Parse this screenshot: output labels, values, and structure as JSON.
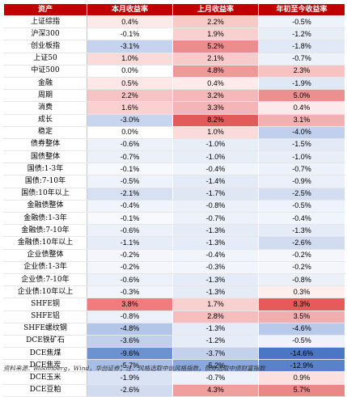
{
  "table": {
    "headers": [
      "资产",
      "本月收益率",
      "上月收益率",
      "年初至今收益率"
    ],
    "rows": [
      {
        "name": "上证综指",
        "values": [
          "0.4%",
          "2.2%",
          "-0.5%"
        ],
        "colors": [
          "#fde9e9",
          "#f8c9c9",
          "#eef2fa"
        ]
      },
      {
        "name": "沪深300",
        "values": [
          "-0.1%",
          "1.9%",
          "-1.2%"
        ],
        "colors": [
          "#ffffff",
          "#f9d0d0",
          "#e8eef8"
        ]
      },
      {
        "name": "创业板指",
        "values": [
          "-3.1%",
          "5.2%",
          "-1.8%"
        ],
        "colors": [
          "#c5d3ee",
          "#ec8d8d",
          "#e1e9f6"
        ]
      },
      {
        "name": "上证50",
        "values": [
          "1.0%",
          "2.1%",
          "-0.7%"
        ],
        "colors": [
          "#fbdada",
          "#f8cbcb",
          "#edf1fa"
        ]
      },
      {
        "name": "中证500",
        "values": [
          "0.0%",
          "4.8%",
          "2.3%"
        ],
        "colors": [
          "#ffffff",
          "#ee9898",
          "#f6c2c2"
        ]
      },
      {
        "name": "金融",
        "values": [
          "0.5%",
          "0.4%",
          "-1.9%"
        ],
        "colors": [
          "#fde7e7",
          "#fdeaea",
          "#e0e8f6"
        ]
      },
      {
        "name": "周期",
        "values": [
          "2.2%",
          "3.2%",
          "5.0%"
        ],
        "colors": [
          "#f6c4c4",
          "#f4b8b8",
          "#ec8f8f"
        ]
      },
      {
        "name": "消费",
        "values": [
          "1.6%",
          "3.3%",
          "0.4%"
        ],
        "colors": [
          "#f9d1d1",
          "#f3b5b5",
          "#fde9e9"
        ]
      },
      {
        "name": "成长",
        "values": [
          "-3.0%",
          "8.2%",
          "3.1%"
        ],
        "colors": [
          "#c7d5ee",
          "#e35a5a",
          "#f2b1b1"
        ]
      },
      {
        "name": "稳定",
        "values": [
          "0.0%",
          "1.0%",
          "-4.0%"
        ],
        "colors": [
          "#ffffff",
          "#fbdada",
          "#c0cfec"
        ]
      },
      {
        "name": "债券整体",
        "values": [
          "-0.6%",
          "-1.0%",
          "-1.5%"
        ],
        "colors": [
          "#edf1fa",
          "#e8eef8",
          "#e3eaf7"
        ]
      },
      {
        "name": "国债整体",
        "values": [
          "-0.7%",
          "-1.0%",
          "-1.0%"
        ],
        "colors": [
          "#ecf0f9",
          "#e8eef8",
          "#e8eef8"
        ]
      },
      {
        "name": "国债:1-3年",
        "values": [
          "-0.1%",
          "-0.4%",
          "-0.7%"
        ],
        "colors": [
          "#f7f9fd",
          "#f0f4fb",
          "#edf1fa"
        ]
      },
      {
        "name": "国债:7-10年",
        "values": [
          "-0.5%",
          "-1.4%",
          "-0.9%"
        ],
        "colors": [
          "#eef2fa",
          "#e4ebf7",
          "#eaeff9"
        ]
      },
      {
        "name": "国债:10年以上",
        "values": [
          "-2.1%",
          "-1.7%",
          "-2.5%"
        ],
        "colors": [
          "#d6e0f2",
          "#dfe7f5",
          "#d2ddf1"
        ]
      },
      {
        "name": "金融债整体",
        "values": [
          "-0.4%",
          "-0.8%",
          "-0.5%"
        ],
        "colors": [
          "#f0f4fb",
          "#ebf0f9",
          "#eef2fa"
        ]
      },
      {
        "name": "金融债:1-3年",
        "values": [
          "-0.1%",
          "-0.7%",
          "-0.4%"
        ],
        "colors": [
          "#f7f9fd",
          "#edf1fa",
          "#f0f4fb"
        ]
      },
      {
        "name": "金融债:7-10年",
        "values": [
          "-0.6%",
          "-1.3%",
          "-1.3%"
        ],
        "colors": [
          "#edf1fa",
          "#e5ecf7",
          "#e5ecf7"
        ]
      },
      {
        "name": "金融债:10年以上",
        "values": [
          "-1.1%",
          "-1.3%",
          "-2.6%"
        ],
        "colors": [
          "#e6edf8",
          "#e5ecf7",
          "#d1dcf1"
        ]
      },
      {
        "name": "企业债整体",
        "values": [
          "-0.2%",
          "-0.4%",
          "-0.2%"
        ],
        "colors": [
          "#f4f6fc",
          "#f0f4fb",
          "#f4f6fc"
        ]
      },
      {
        "name": "企业债:1-3年",
        "values": [
          "-0.2%",
          "-0.3%",
          "-0.2%"
        ],
        "colors": [
          "#f4f6fc",
          "#f2f5fb",
          "#f4f6fc"
        ]
      },
      {
        "name": "企业债:7-10年",
        "values": [
          "-0.6%",
          "-1.3%",
          "-0.8%"
        ],
        "colors": [
          "#edf1fa",
          "#e5ecf7",
          "#ebf0f9"
        ]
      },
      {
        "name": "企业债:10年以上",
        "values": [
          "-0.3%",
          "-1.3%",
          "0.3%"
        ],
        "colors": [
          "#f2f5fb",
          "#e5ecf7",
          "#feeeee"
        ]
      },
      {
        "name": "SHFE铜",
        "values": [
          "3.8%",
          "1.7%",
          "8.3%"
        ],
        "colors": [
          "#ef7d7d",
          "#f9d0d0",
          "#e55a5a"
        ]
      },
      {
        "name": "SHFE铝",
        "values": [
          "-0.8%",
          "2.8%",
          "3.5%"
        ],
        "colors": [
          "#ebf0f9",
          "#f5bdbd",
          "#f1aeae"
        ]
      },
      {
        "name": "SHFE螺纹钢",
        "values": [
          "-4.8%",
          "-1.3%",
          "-4.6%"
        ],
        "colors": [
          "#b4c6e8",
          "#e5ecf7",
          "#b8c9ea"
        ]
      },
      {
        "name": "DCE铁矿石",
        "values": [
          "-3.6%",
          "-1.2%",
          "-0.5%"
        ],
        "colors": [
          "#c1d0ed",
          "#e6edf8",
          "#eef2fa"
        ]
      },
      {
        "name": "DCE焦煤",
        "values": [
          "-9.6%",
          "-3.7%",
          "-14.6%"
        ],
        "colors": [
          "#6d92d1",
          "#c3d1ed",
          "#4a76c4"
        ]
      },
      {
        "name": "DCE焦炭",
        "values": [
          "-5.7%",
          "-5.2%",
          "-12.9%"
        ],
        "colors": [
          "#a9bee5",
          "#8aa8dd",
          "#5a82c9"
        ]
      },
      {
        "name": "DCE玉米",
        "values": [
          "-1.9%",
          "-0.7%",
          "0.9%"
        ],
        "colors": [
          "#dae3f4",
          "#edf1fa",
          "#fce0e0"
        ]
      },
      {
        "name": "DCE豆粕",
        "values": [
          "-2.6%",
          "4.3%",
          "5.7%"
        ],
        "colors": [
          "#d1dcf1",
          "#f09f9f",
          "#ea8888"
        ]
      }
    ]
  },
  "source_note": "资料来源：Bloomberg，Wind，华创证券；注：风格选取中信风格指数，债券选取中债财富指数"
}
